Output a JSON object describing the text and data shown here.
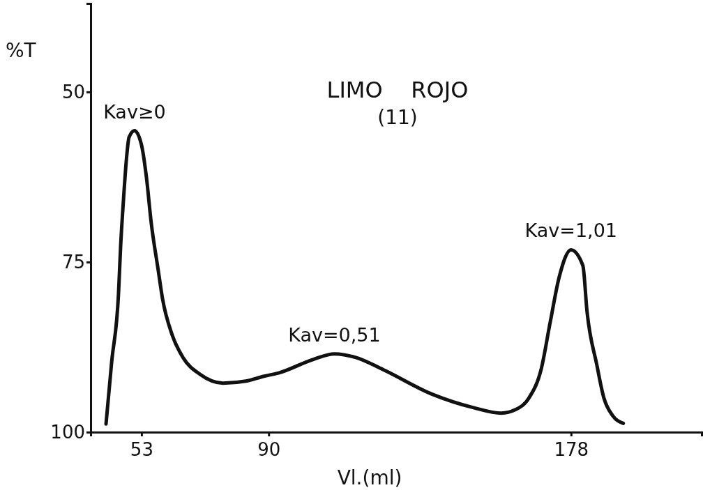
{
  "chart_data": {
    "type": "line",
    "title": "LIMO    ROJO",
    "subtitle": "(11)",
    "xlabel": "Vl.(ml)",
    "ylabel": "%T",
    "xlim": [
      38.2,
      216
    ],
    "ylim": [
      100,
      37
    ],
    "xticks": [
      53,
      90,
      178
    ],
    "yticks": [
      50,
      75,
      100
    ],
    "grid": false,
    "marker": "none",
    "line_style": "solid",
    "series": [
      {
        "color": "#111111",
        "x": [
          42.67,
          44.29,
          46.31,
          46.92,
          47.73,
          48.75,
          49.35,
          50.97,
          53.0,
          54.42,
          55.84,
          57.86,
          59.08,
          61.91,
          65.16,
          70.02,
          76.7,
          83.39,
          88.45,
          92.91,
          103.04,
          109.12,
          115.2,
          123.3,
          137.48,
          149.64,
          157.74,
          161.79,
          165.84,
          169.29,
          171.92,
          174.56,
          178.0,
          181.44,
          182.66,
          185.5,
          187.52,
          190.16,
          193.2
        ],
        "values": [
          98.8,
          89.8,
          79.6,
          72.7,
          66.0,
          59.1,
          56.7,
          55.7,
          57.8,
          62.5,
          69.3,
          76.2,
          80.3,
          85.7,
          89.1,
          91.5,
          92.8,
          92.5,
          91.8,
          91.3,
          89.3,
          88.5,
          89.0,
          90.8,
          94.4,
          96.4,
          97.2,
          96.7,
          94.9,
          90.8,
          83.9,
          77.2,
          73.2,
          75.5,
          82.3,
          90.1,
          94.9,
          97.6,
          98.7
        ]
      }
    ],
    "annotations": [
      {
        "text": "Kav≥0",
        "x": 50.97,
        "y": 55.7
      },
      {
        "text": "Kav=0,51",
        "x": 109.12,
        "y": 88.5
      },
      {
        "text": "Kav=1,01",
        "x": 178.0,
        "y": 73.2
      }
    ]
  }
}
